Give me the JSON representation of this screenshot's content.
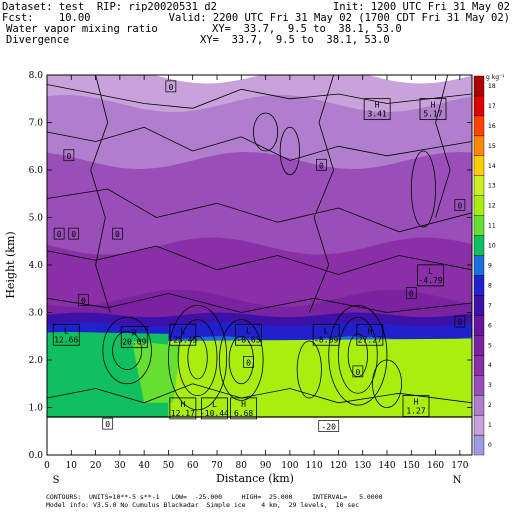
{
  "header": {
    "left_line1": "Dataset: test  RIP: rip20020531 d2",
    "left_line2": "Fcst:    10.00",
    "left_line3": "Water vapor mixing ratio",
    "left_line4": "Divergence",
    "right_line1": "Init: 1200 UTC Fri 31 May 02",
    "right_line2": "Valid: 2200 UTC Fri 31 May 02 (1700 CDT Fri 31 May 02)",
    "right_line3": "XY=  33.7,  9.5 to  38.1, 53.0",
    "right_line4": "XY=  33.7,  9.5 to  38.1, 53.0"
  },
  "footer": {
    "endpoint_left": "S",
    "endpoint_right": "N",
    "line1": "CONTOURS:  UNITS=10**-5 s**-1   LOW=  -25.000     HIGH=  25.000     INTERVAL=   5.0000",
    "line2": "Model info: V3.5.0 No Cumulus Blackadar  Simple ice    4 km,  29 levels,  10 sec"
  },
  "chart_data": {
    "type": "heatmap",
    "title": "",
    "xlabel": "Distance (km)",
    "ylabel": "Height (km)",
    "xlim": [
      0,
      175
    ],
    "ylim": [
      0,
      8
    ],
    "x_ticks": [
      0,
      10,
      20,
      30,
      40,
      50,
      60,
      70,
      80,
      90,
      100,
      110,
      120,
      130,
      140,
      150,
      160,
      170
    ],
    "y_ticks": [
      0.0,
      1.0,
      2.0,
      3.0,
      4.0,
      5.0,
      6.0,
      7.0,
      8.0
    ],
    "colorbar": {
      "unit_label": "g kg⁻¹",
      "levels": [
        0,
        1,
        2,
        3,
        4,
        5,
        6,
        7,
        8,
        9,
        10,
        11,
        12,
        13,
        14,
        15,
        16,
        17,
        18
      ],
      "colors": [
        "#9b9be8",
        "#c9a2dc",
        "#b07ecc",
        "#9a4fb8",
        "#8a2fa8",
        "#7a22a0",
        "#6a12a0",
        "#3d10a8",
        "#2020cc",
        "#1a6fe0",
        "#10c060",
        "#66e030",
        "#aaee10",
        "#ccee22",
        "#ffcc00",
        "#ff8800",
        "#ff4400",
        "#dd0000",
        "#b00000"
      ]
    },
    "field_layers": [
      {
        "level": 1,
        "top_km": 8.0
      },
      {
        "level": 2,
        "top_km": 7.4
      },
      {
        "level": 3,
        "top_km": 6.2
      },
      {
        "level": 4,
        "top_km": 4.4
      },
      {
        "level": 5,
        "top_km": 3.3
      },
      {
        "level": 7,
        "top_km": 2.95
      },
      {
        "level": 8,
        "top_km": 2.75
      },
      {
        "level": 9,
        "top_km": 2.45
      }
    ],
    "terrain_km": 0.8,
    "annotations": [
      {
        "kind": "max",
        "text": "H",
        "value": "3.41",
        "x": 131,
        "y": 7.25
      },
      {
        "kind": "max",
        "text": "H",
        "value": "5.17",
        "x": 154,
        "y": 7.25
      },
      {
        "kind": "min",
        "text": "L",
        "value": "-4.79",
        "x": 153,
        "y": 3.75
      },
      {
        "kind": "min",
        "text": "L",
        "value": "12.66",
        "x": 3,
        "y": 2.5
      },
      {
        "kind": "max",
        "text": "H",
        "value": "20.09",
        "x": 31,
        "y": 2.45
      },
      {
        "kind": "min",
        "text": "L",
        "value": "-25.45",
        "x": 51,
        "y": 2.5
      },
      {
        "kind": "min",
        "text": "L",
        "value": "-8.63",
        "x": 78,
        "y": 2.5
      },
      {
        "kind": "min",
        "text": "L",
        "value": "-8.89",
        "x": 110,
        "y": 2.5
      },
      {
        "kind": "max",
        "text": "H",
        "value": "27.27",
        "x": 128,
        "y": 2.5
      },
      {
        "kind": "max",
        "text": "H",
        "value": "12.17",
        "x": 51,
        "y": 0.95
      },
      {
        "kind": "min",
        "text": "L",
        "value": "-10.44",
        "x": 64,
        "y": 0.95
      },
      {
        "kind": "max",
        "text": "H",
        "value": "6.68",
        "x": 76,
        "y": 0.95
      },
      {
        "kind": "max",
        "text": "H",
        "value": "1.27",
        "x": 147,
        "y": 1.0
      }
    ],
    "contour_labels": [
      {
        "text": "0",
        "x": 51,
        "y": 7.75
      },
      {
        "text": "0",
        "x": 9,
        "y": 6.3
      },
      {
        "text": "0",
        "x": 113,
        "y": 6.1
      },
      {
        "text": "0",
        "x": 170,
        "y": 5.25
      },
      {
        "text": "0",
        "x": 5,
        "y": 4.65
      },
      {
        "text": "0",
        "x": 11,
        "y": 4.65
      },
      {
        "text": "0",
        "x": 29,
        "y": 4.65
      },
      {
        "text": "0",
        "x": 15,
        "y": 3.25
      },
      {
        "text": "0",
        "x": 150,
        "y": 3.4
      },
      {
        "text": "0",
        "x": 170,
        "y": 2.8
      },
      {
        "text": "0",
        "x": 83,
        "y": 1.95
      },
      {
        "text": "0",
        "x": 128,
        "y": 1.75
      },
      {
        "text": "0",
        "x": 25,
        "y": 0.65
      },
      {
        "text": "-20",
        "x": 116,
        "y": 0.6
      }
    ]
  }
}
